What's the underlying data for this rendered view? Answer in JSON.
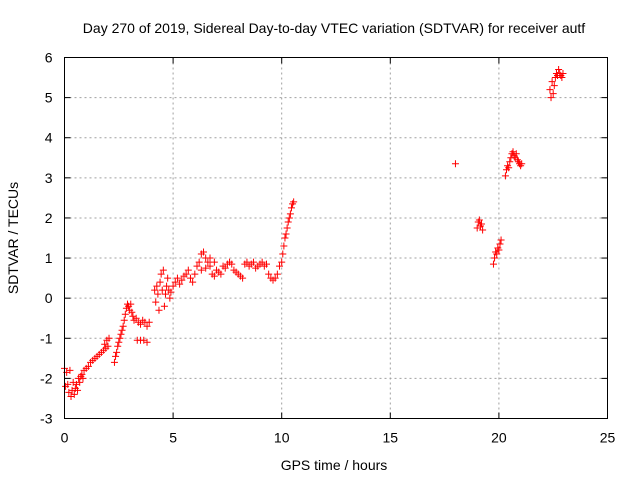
{
  "chart_data": {
    "type": "scatter",
    "title": "Day 270 of 2019, Sidereal Day-to-day VTEC variation (SDTVAR) for receiver autf",
    "xlabel": "GPS time / hours",
    "ylabel": "SDTVAR / TECUs",
    "xlim": [
      0,
      25
    ],
    "ylim": [
      -3,
      6
    ],
    "xticks": [
      "0",
      "5",
      "10",
      "15",
      "20",
      "25"
    ],
    "yticks": [
      "-3",
      "-2",
      "-1",
      "0",
      "1",
      "2",
      "3",
      "4",
      "5",
      "6"
    ],
    "grid": true,
    "marker": "+",
    "color": "#ff0000",
    "series": [
      {
        "name": "SDTVAR",
        "points": [
          [
            0.0,
            -1.75
          ],
          [
            0.05,
            -2.2
          ],
          [
            0.1,
            -1.85
          ],
          [
            0.15,
            -2.15
          ],
          [
            0.2,
            -2.35
          ],
          [
            0.25,
            -1.8
          ],
          [
            0.3,
            -2.45
          ],
          [
            0.35,
            -2.3
          ],
          [
            0.4,
            -2.1
          ],
          [
            0.45,
            -2.4
          ],
          [
            0.5,
            -2.25
          ],
          [
            0.55,
            -2.15
          ],
          [
            0.6,
            -2.3
          ],
          [
            0.65,
            -2.0
          ],
          [
            0.7,
            -2.1
          ],
          [
            0.75,
            -1.95
          ],
          [
            0.8,
            -1.9
          ],
          [
            0.85,
            -2.0
          ],
          [
            0.9,
            -1.8
          ],
          [
            1.0,
            -1.75
          ],
          [
            1.1,
            -1.7
          ],
          [
            1.2,
            -1.6
          ],
          [
            1.3,
            -1.55
          ],
          [
            1.4,
            -1.5
          ],
          [
            1.5,
            -1.45
          ],
          [
            1.6,
            -1.4
          ],
          [
            1.7,
            -1.35
          ],
          [
            1.8,
            -1.3
          ],
          [
            1.9,
            -1.25
          ],
          [
            2.0,
            -1.2
          ],
          [
            1.95,
            -1.05
          ],
          [
            2.05,
            -1.0
          ],
          [
            1.85,
            -1.15
          ],
          [
            2.3,
            -1.6
          ],
          [
            2.35,
            -1.45
          ],
          [
            2.4,
            -1.35
          ],
          [
            2.45,
            -1.2
          ],
          [
            2.5,
            -1.1
          ],
          [
            2.55,
            -1.0
          ],
          [
            2.6,
            -0.9
          ],
          [
            2.65,
            -0.8
          ],
          [
            2.7,
            -0.7
          ],
          [
            2.75,
            -0.55
          ],
          [
            2.8,
            -0.4
          ],
          [
            2.85,
            -0.25
          ],
          [
            2.9,
            -0.15
          ],
          [
            2.95,
            -0.2
          ],
          [
            3.0,
            -0.3
          ],
          [
            3.05,
            -0.15
          ],
          [
            3.1,
            -0.35
          ],
          [
            3.15,
            -0.45
          ],
          [
            3.2,
            -0.55
          ],
          [
            3.3,
            -0.5
          ],
          [
            3.4,
            -0.6
          ],
          [
            3.5,
            -0.65
          ],
          [
            3.6,
            -0.55
          ],
          [
            3.7,
            -0.6
          ],
          [
            3.8,
            -0.7
          ],
          [
            3.9,
            -0.6
          ],
          [
            3.35,
            -1.05
          ],
          [
            3.5,
            -1.05
          ],
          [
            3.65,
            -1.05
          ],
          [
            3.8,
            -1.1
          ],
          [
            4.15,
            0.2
          ],
          [
            4.2,
            -0.1
          ],
          [
            4.25,
            0.3
          ],
          [
            4.3,
            0.1
          ],
          [
            4.35,
            -0.3
          ],
          [
            4.4,
            0.4
          ],
          [
            4.45,
            0.6
          ],
          [
            4.5,
            0.2
          ],
          [
            4.55,
            0.7
          ],
          [
            4.6,
            -0.2
          ],
          [
            4.65,
            0.1
          ],
          [
            4.7,
            0.3
          ],
          [
            4.75,
            0.5
          ],
          [
            4.8,
            0.2
          ],
          [
            4.85,
            0.0
          ],
          [
            4.9,
            0.15
          ],
          [
            5.0,
            0.3
          ],
          [
            5.1,
            0.4
          ],
          [
            5.2,
            0.5
          ],
          [
            5.3,
            0.35
          ],
          [
            5.4,
            0.45
          ],
          [
            5.5,
            0.55
          ],
          [
            5.6,
            0.6
          ],
          [
            5.7,
            0.7
          ],
          [
            5.8,
            0.5
          ],
          [
            5.9,
            0.4
          ],
          [
            6.0,
            0.6
          ],
          [
            6.1,
            0.8
          ],
          [
            6.2,
            0.9
          ],
          [
            6.3,
            1.1
          ],
          [
            6.4,
            1.15
          ],
          [
            6.5,
            1.0
          ],
          [
            6.6,
            0.9
          ],
          [
            6.7,
            0.8
          ],
          [
            6.8,
            0.6
          ],
          [
            6.9,
            0.55
          ],
          [
            7.0,
            0.7
          ],
          [
            7.1,
            0.65
          ],
          [
            7.2,
            0.6
          ],
          [
            6.3,
            0.7
          ],
          [
            6.5,
            0.75
          ],
          [
            6.7,
            1.0
          ],
          [
            6.9,
            0.9
          ],
          [
            7.3,
            0.8
          ],
          [
            7.4,
            0.75
          ],
          [
            7.5,
            0.85
          ],
          [
            7.6,
            0.9
          ],
          [
            7.7,
            0.85
          ],
          [
            7.8,
            0.7
          ],
          [
            7.9,
            0.65
          ],
          [
            8.0,
            0.6
          ],
          [
            8.1,
            0.55
          ],
          [
            8.2,
            0.5
          ],
          [
            8.3,
            0.85
          ],
          [
            8.4,
            0.9
          ],
          [
            8.5,
            0.8
          ],
          [
            8.6,
            0.85
          ],
          [
            8.7,
            0.9
          ],
          [
            8.8,
            0.75
          ],
          [
            8.9,
            0.8
          ],
          [
            9.0,
            0.85
          ],
          [
            9.1,
            0.9
          ],
          [
            9.2,
            0.8
          ],
          [
            9.3,
            0.85
          ],
          [
            9.4,
            0.6
          ],
          [
            9.5,
            0.5
          ],
          [
            9.6,
            0.45
          ],
          [
            9.7,
            0.5
          ],
          [
            9.8,
            0.6
          ],
          [
            9.9,
            0.8
          ],
          [
            10.0,
            0.9
          ],
          [
            10.05,
            1.1
          ],
          [
            10.1,
            1.3
          ],
          [
            10.15,
            1.5
          ],
          [
            10.2,
            1.6
          ],
          [
            10.25,
            1.75
          ],
          [
            10.3,
            1.9
          ],
          [
            10.35,
            2.0
          ],
          [
            10.4,
            2.1
          ],
          [
            10.45,
            2.25
          ],
          [
            10.5,
            2.35
          ],
          [
            10.55,
            2.4
          ],
          [
            18.0,
            3.35
          ],
          [
            19.0,
            1.75
          ],
          [
            19.05,
            1.9
          ],
          [
            19.1,
            1.95
          ],
          [
            19.15,
            1.8
          ],
          [
            19.2,
            1.85
          ],
          [
            19.25,
            1.7
          ],
          [
            19.75,
            0.85
          ],
          [
            19.8,
            1.0
          ],
          [
            19.85,
            1.15
          ],
          [
            19.9,
            1.1
          ],
          [
            19.95,
            1.25
          ],
          [
            20.0,
            1.2
          ],
          [
            20.05,
            1.35
          ],
          [
            20.1,
            1.45
          ],
          [
            20.3,
            3.05
          ],
          [
            20.35,
            3.2
          ],
          [
            20.4,
            3.3
          ],
          [
            20.45,
            3.25
          ],
          [
            20.5,
            3.4
          ],
          [
            20.55,
            3.5
          ],
          [
            20.6,
            3.6
          ],
          [
            20.65,
            3.65
          ],
          [
            20.7,
            3.55
          ],
          [
            20.75,
            3.5
          ],
          [
            20.8,
            3.6
          ],
          [
            20.85,
            3.45
          ],
          [
            20.9,
            3.4
          ],
          [
            20.95,
            3.35
          ],
          [
            21.0,
            3.3
          ],
          [
            21.05,
            3.35
          ],
          [
            22.35,
            5.2
          ],
          [
            22.4,
            5.0
          ],
          [
            22.45,
            5.4
          ],
          [
            22.5,
            5.1
          ],
          [
            22.55,
            5.3
          ],
          [
            22.6,
            5.5
          ],
          [
            22.65,
            5.6
          ],
          [
            22.7,
            5.55
          ],
          [
            22.75,
            5.7
          ],
          [
            22.8,
            5.6
          ],
          [
            22.85,
            5.55
          ],
          [
            22.9,
            5.5
          ],
          [
            22.95,
            5.6
          ]
        ]
      }
    ]
  }
}
